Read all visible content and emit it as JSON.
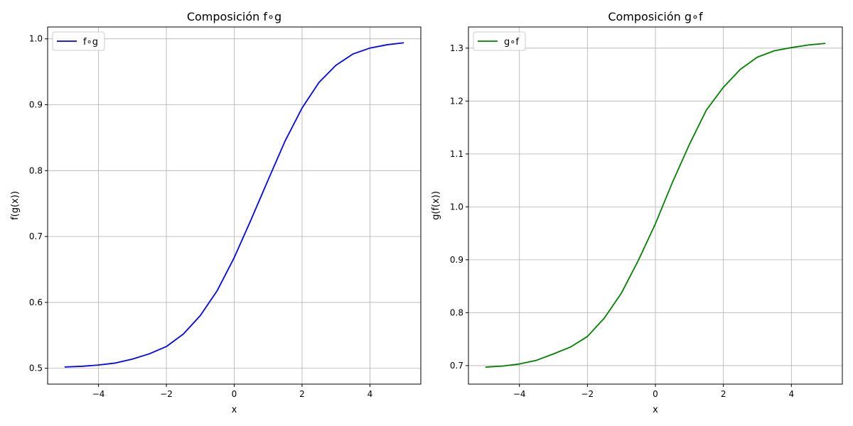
{
  "chart_data": [
    {
      "type": "line",
      "title": "Composición f∘g",
      "xlabel": "x",
      "ylabel": "f(g(x))",
      "xlim": [
        -5.5,
        5.5
      ],
      "ylim": [
        0.476,
        1.018
      ],
      "xticks": [
        -4,
        -2,
        0,
        2,
        4
      ],
      "xtick_labels": [
        "−4",
        "−2",
        "0",
        "2",
        "4"
      ],
      "yticks": [
        0.5,
        0.6,
        0.7,
        0.8,
        0.9,
        1.0
      ],
      "ytick_labels": [
        "0.5",
        "0.6",
        "0.7",
        "0.8",
        "0.9",
        "1.0"
      ],
      "grid": true,
      "legend": "upper-left",
      "series": [
        {
          "name": "f∘g",
          "color": "#0000ff",
          "x": [
            -5,
            -4.5,
            -4,
            -3.5,
            -3,
            -2.5,
            -2,
            -1.5,
            -1,
            -0.5,
            0,
            0.5,
            1,
            1.5,
            2,
            2.5,
            3,
            3.5,
            4,
            4.5,
            5
          ],
          "y": [
            0.502,
            0.503,
            0.505,
            0.508,
            0.514,
            0.522,
            0.533,
            0.552,
            0.58,
            0.618,
            0.668,
            0.726,
            0.786,
            0.845,
            0.895,
            0.934,
            0.96,
            0.977,
            0.986,
            0.991,
            0.994
          ]
        }
      ]
    },
    {
      "type": "line",
      "title": "Composición g∘f",
      "xlabel": "x",
      "ylabel": "g(f(x))",
      "xlim": [
        -5.5,
        5.5
      ],
      "ylim": [
        0.665,
        1.34
      ],
      "xticks": [
        -4,
        -2,
        0,
        2,
        4
      ],
      "xtick_labels": [
        "−4",
        "−2",
        "0",
        "2",
        "4"
      ],
      "yticks": [
        0.7,
        0.8,
        0.9,
        1.0,
        1.1,
        1.2,
        1.3
      ],
      "ytick_labels": [
        "0.7",
        "0.8",
        "0.9",
        "1.0",
        "1.1",
        "1.2",
        "1.3"
      ],
      "grid": true,
      "legend": "upper-left",
      "series": [
        {
          "name": "g∘f",
          "color": "#008000",
          "x": [
            -5,
            -4.5,
            -4,
            -3.5,
            -3,
            -2.5,
            -2,
            -1.5,
            -1,
            -0.5,
            0,
            0.5,
            1,
            1.5,
            2,
            2.5,
            3,
            3.5,
            4,
            4.5,
            5
          ],
          "y": [
            0.697,
            0.699,
            0.703,
            0.71,
            0.722,
            0.735,
            0.755,
            0.79,
            0.837,
            0.899,
            0.968,
            1.046,
            1.118,
            1.183,
            1.226,
            1.26,
            1.283,
            1.295,
            1.301,
            1.306,
            1.309
          ]
        }
      ]
    }
  ]
}
